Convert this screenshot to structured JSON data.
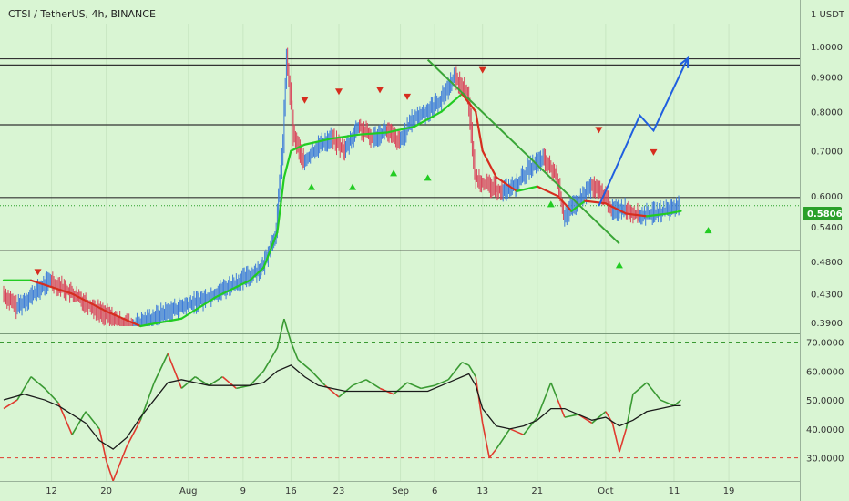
{
  "header": {
    "title": "CTSI / TetherUS, 4h, BINANCE",
    "currency": "1 USDT"
  },
  "colors": {
    "background": "#d9f5d3",
    "bull": "#3d7bd9",
    "bear": "#d9435a",
    "ma_up": "#22cc22",
    "ma_down": "#d62d1e",
    "trendline": "#3aa637",
    "projection": "#1f5fe0",
    "level": "#333333",
    "badge": "#2aa02a",
    "osc_up": "#3a9a33",
    "osc_down": "#e03a2e",
    "osc_signal": "#1a1a1a"
  },
  "chart_data": [
    {
      "type": "candlestick",
      "title": "CTSI / TetherUS, 4h, BINANCE",
      "yscale": "log",
      "ylim": [
        0.385,
        1.08
      ],
      "y_ticks": [
        1.0,
        0.9,
        0.8,
        0.7,
        0.6,
        0.54,
        0.48,
        0.43,
        0.39
      ],
      "y_tick_labels": [
        "1.0000",
        "0.9000",
        "0.8000",
        "0.7000",
        "0.6000",
        "0.5400",
        "0.4800",
        "0.4300",
        "0.3900"
      ],
      "x_tick_labels": [
        "12",
        "20",
        "Aug",
        "9",
        "16",
        "23",
        "Sep",
        "6",
        "13",
        "21",
        "Oct",
        "11",
        "19"
      ],
      "last_price": "0.5806",
      "horizontal_levels": [
        0.958,
        0.938,
        0.765,
        0.597,
        0.498
      ],
      "trendline": [
        [
          "2021-09-05",
          0.955
        ],
        [
          "2021-10-03",
          0.51
        ]
      ],
      "projection_path": [
        [
          "2021-09-30",
          0.58
        ],
        [
          "2021-10-06",
          0.79
        ],
        [
          "2021-10-08",
          0.75
        ],
        [
          "2021-10-13",
          0.96
        ]
      ],
      "series": [
        {
          "values": [
            [
              0,
              0.43
            ],
            [
              2,
              0.41
            ],
            [
              4,
              0.425
            ],
            [
              7,
              0.45
            ],
            [
              10,
              0.43
            ],
            [
              14,
              0.405
            ],
            [
              17,
              0.39
            ],
            [
              19,
              0.385
            ],
            [
              21,
              0.392
            ],
            [
              23,
              0.4
            ],
            [
              26,
              0.41
            ],
            [
              29,
              0.42
            ],
            [
              33,
              0.44
            ],
            [
              35,
              0.45
            ],
            [
              38,
              0.47
            ],
            [
              40,
              0.53
            ],
            [
              41,
              0.72
            ],
            [
              41.5,
              0.96
            ],
            [
              42.5,
              0.74
            ],
            [
              44,
              0.67
            ],
            [
              46,
              0.71
            ],
            [
              48,
              0.73
            ],
            [
              50,
              0.7
            ],
            [
              52,
              0.76
            ],
            [
              54,
              0.73
            ],
            [
              56,
              0.75
            ],
            [
              58,
              0.72
            ],
            [
              60,
              0.78
            ],
            [
              62,
              0.8
            ],
            [
              64,
              0.83
            ],
            [
              66,
              0.9
            ],
            [
              68,
              0.85
            ],
            [
              69,
              0.64
            ],
            [
              71,
              0.62
            ],
            [
              73,
              0.61
            ],
            [
              75,
              0.62
            ],
            [
              77,
              0.66
            ],
            [
              79,
              0.68
            ],
            [
              81,
              0.64
            ],
            [
              82,
              0.56
            ],
            [
              84,
              0.585
            ],
            [
              86,
              0.62
            ],
            [
              88,
              0.6
            ],
            [
              89,
              0.57
            ],
            [
              91,
              0.575
            ],
            [
              93,
              0.56
            ],
            [
              95,
              0.565
            ],
            [
              97,
              0.57
            ],
            [
              99,
              0.5806
            ]
          ]
        },
        {
          "values": [
            [
              0,
              0.45
            ],
            [
              4,
              0.45
            ],
            [
              10,
              0.43
            ],
            [
              15,
              0.405
            ],
            [
              20,
              0.385
            ],
            [
              26,
              0.395
            ],
            [
              31,
              0.425
            ],
            [
              36,
              0.45
            ],
            [
              38,
              0.47
            ],
            [
              40,
              0.53
            ],
            [
              41,
              0.64
            ],
            [
              42,
              0.7
            ],
            [
              44,
              0.715
            ],
            [
              48,
              0.73
            ],
            [
              52,
              0.74
            ],
            [
              56,
              0.745
            ],
            [
              60,
              0.76
            ],
            [
              64,
              0.8
            ],
            [
              67,
              0.85
            ],
            [
              69,
              0.8
            ],
            [
              70,
              0.7
            ],
            [
              72,
              0.64
            ],
            [
              75,
              0.61
            ],
            [
              78,
              0.62
            ],
            [
              81,
              0.6
            ],
            [
              83,
              0.57
            ],
            [
              85,
              0.59
            ],
            [
              88,
              0.585
            ],
            [
              91,
              0.565
            ],
            [
              94,
              0.56
            ],
            [
              97,
              0.565
            ],
            [
              99,
              0.57
            ]
          ]
        }
      ],
      "markers": {
        "sell": [
          [
            5,
            0.462
          ],
          [
            44,
            0.83
          ],
          [
            49,
            0.855
          ],
          [
            55,
            0.86
          ],
          [
            59,
            0.84
          ],
          [
            70,
            0.92
          ],
          [
            87,
            0.75
          ],
          [
            95,
            0.695
          ]
        ],
        "buy": [
          [
            45,
            0.62
          ],
          [
            51,
            0.62
          ],
          [
            57,
            0.65
          ],
          [
            62,
            0.64
          ],
          [
            80,
            0.585
          ],
          [
            90,
            0.475
          ],
          [
            103,
            0.535
          ]
        ]
      }
    },
    {
      "type": "line",
      "title": "",
      "ylim": [
        22,
        73
      ],
      "y_ticks": [
        70,
        60,
        50,
        40,
        30
      ],
      "y_tick_labels": [
        "70.0000",
        "60.0000",
        "50.0000",
        "40.0000",
        "30.0000"
      ],
      "bands": [
        70,
        30
      ],
      "series": [
        {
          "values": [
            [
              0,
              47
            ],
            [
              2,
              50
            ],
            [
              4,
              58
            ],
            [
              6,
              54
            ],
            [
              8,
              49
            ],
            [
              10,
              38
            ],
            [
              12,
              46
            ],
            [
              14,
              40
            ],
            [
              15,
              29
            ],
            [
              16,
              22
            ],
            [
              18,
              34
            ],
            [
              20,
              43
            ],
            [
              22,
              56
            ],
            [
              24,
              66
            ],
            [
              26,
              54
            ],
            [
              28,
              58
            ],
            [
              30,
              55
            ],
            [
              32,
              58
            ],
            [
              34,
              54
            ],
            [
              36,
              55
            ],
            [
              38,
              60
            ],
            [
              40,
              68
            ],
            [
              41,
              78
            ],
            [
              42,
              70
            ],
            [
              43,
              64
            ],
            [
              45,
              60
            ],
            [
              47,
              55
            ],
            [
              49,
              51
            ],
            [
              51,
              55
            ],
            [
              53,
              57
            ],
            [
              55,
              54
            ],
            [
              57,
              52
            ],
            [
              59,
              56
            ],
            [
              61,
              54
            ],
            [
              63,
              55
            ],
            [
              65,
              57
            ],
            [
              66,
              60
            ],
            [
              67,
              63
            ],
            [
              68,
              62
            ],
            [
              69,
              58
            ],
            [
              70,
              42
            ],
            [
              71,
              30
            ],
            [
              72,
              33
            ],
            [
              74,
              40
            ],
            [
              76,
              38
            ],
            [
              78,
              44
            ],
            [
              80,
              56
            ],
            [
              81,
              50
            ],
            [
              82,
              44
            ],
            [
              84,
              45
            ],
            [
              86,
              42
            ],
            [
              88,
              46
            ],
            [
              89,
              42
            ],
            [
              90,
              32
            ],
            [
              91,
              40
            ],
            [
              92,
              52
            ],
            [
              94,
              56
            ],
            [
              96,
              50
            ],
            [
              98,
              48
            ],
            [
              99,
              50
            ]
          ]
        },
        {
          "values": [
            [
              0,
              50
            ],
            [
              3,
              52
            ],
            [
              6,
              50
            ],
            [
              8,
              48
            ],
            [
              10,
              45
            ],
            [
              12,
              42
            ],
            [
              14,
              36
            ],
            [
              16,
              33
            ],
            [
              18,
              37
            ],
            [
              20,
              44
            ],
            [
              22,
              50
            ],
            [
              24,
              56
            ],
            [
              26,
              57
            ],
            [
              28,
              56
            ],
            [
              30,
              55
            ],
            [
              32,
              55
            ],
            [
              34,
              55
            ],
            [
              36,
              55
            ],
            [
              38,
              56
            ],
            [
              40,
              60
            ],
            [
              42,
              62
            ],
            [
              44,
              58
            ],
            [
              46,
              55
            ],
            [
              48,
              54
            ],
            [
              50,
              53
            ],
            [
              52,
              53
            ],
            [
              54,
              53
            ],
            [
              56,
              53
            ],
            [
              58,
              53
            ],
            [
              60,
              53
            ],
            [
              62,
              53
            ],
            [
              64,
              55
            ],
            [
              66,
              57
            ],
            [
              68,
              59
            ],
            [
              69,
              55
            ],
            [
              70,
              47
            ],
            [
              72,
              41
            ],
            [
              74,
              40
            ],
            [
              76,
              41
            ],
            [
              78,
              43
            ],
            [
              80,
              47
            ],
            [
              82,
              47
            ],
            [
              84,
              45
            ],
            [
              86,
              43
            ],
            [
              88,
              44
            ],
            [
              90,
              41
            ],
            [
              92,
              43
            ],
            [
              94,
              46
            ],
            [
              96,
              47
            ],
            [
              98,
              48
            ],
            [
              99,
              48
            ]
          ]
        }
      ]
    }
  ]
}
